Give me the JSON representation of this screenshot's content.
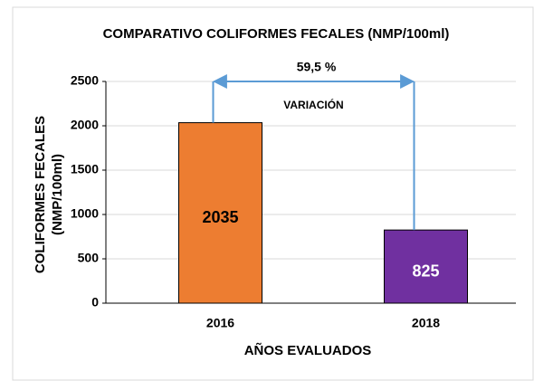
{
  "chart_data": {
    "type": "bar",
    "title": "COMPARATIVO COLIFORMES FECALES (NMP/100ml)",
    "xlabel": "AÑOS EVALUADOS",
    "ylabel": [
      "COLIFORMES FECALES",
      "(NMP/100ml)"
    ],
    "categories": [
      "2016",
      "2018"
    ],
    "values": [
      2035,
      825
    ],
    "colors": [
      "#ed7d31",
      "#7030a0"
    ],
    "value_label_colors": [
      "#000000",
      "#ffffff"
    ],
    "ylim": [
      0,
      2500
    ],
    "yticks": [
      0,
      500,
      1000,
      1500,
      2000,
      2500
    ],
    "grid": true,
    "annotations": [
      "59,5 %",
      "VARIACIÓN"
    ]
  }
}
